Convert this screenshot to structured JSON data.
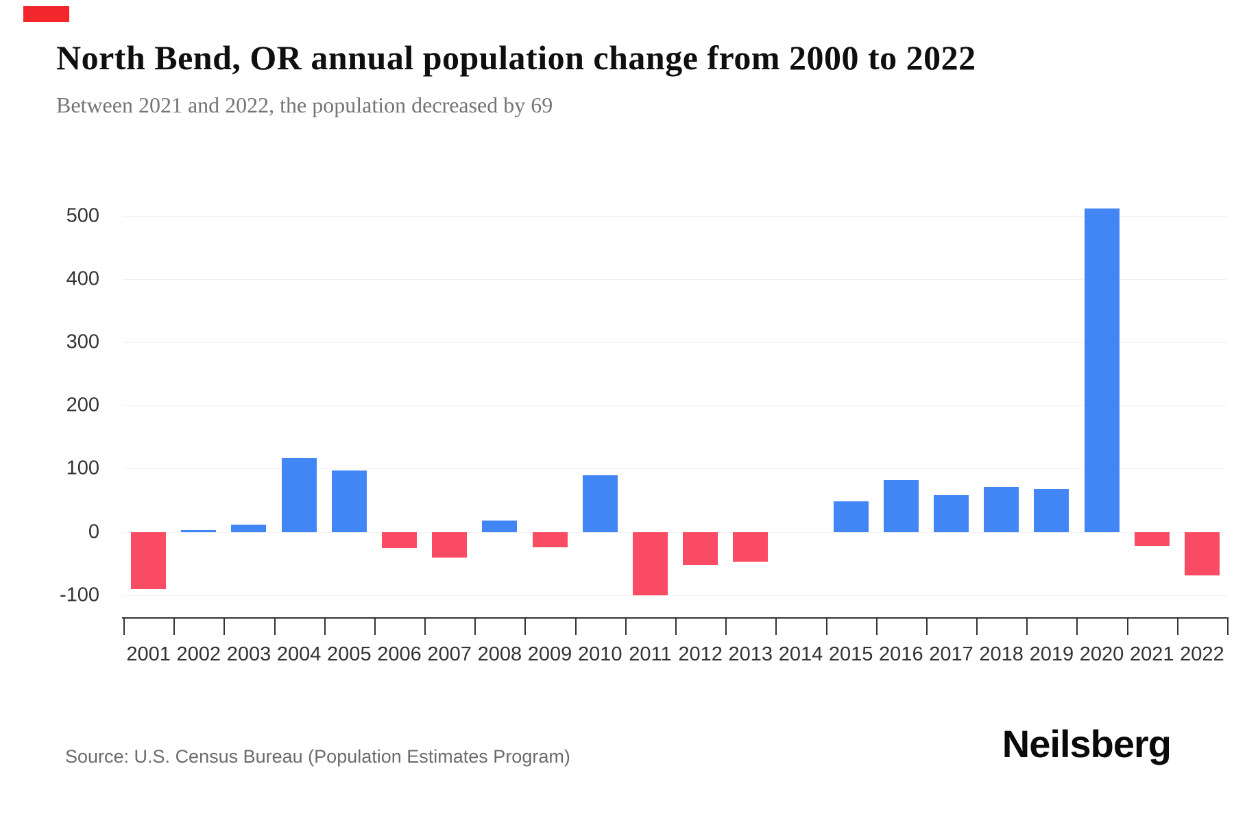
{
  "header": {
    "title": "North Bend, OR annual population change from 2000 to 2022",
    "subtitle": "Between 2021 and 2022, the population decreased by 69"
  },
  "footer": {
    "source": "Source: U.S. Census Bureau (Population Estimates Program)",
    "brand": "Neilsberg"
  },
  "colors": {
    "positive_bar": "#4285F4",
    "negative_bar": "#FA4B64",
    "gridline": "#F2F2F2",
    "axis": "#333333",
    "red_marker": "#F2262B",
    "title_text": "#0F0F0F",
    "subtitle_text": "#757575",
    "source_text": "#6B6B6B"
  },
  "chart_data": {
    "type": "bar",
    "title": "North Bend, OR annual population change from 2000 to 2022",
    "subtitle": "Between 2021 and 2022, the population decreased by 69",
    "xlabel": "",
    "ylabel": "",
    "categories": [
      "2001",
      "2002",
      "2003",
      "2004",
      "2005",
      "2006",
      "2007",
      "2008",
      "2009",
      "2010",
      "2011",
      "2012",
      "2013",
      "2014",
      "2015",
      "2016",
      "2017",
      "2018",
      "2019",
      "2020",
      "2021",
      "2022"
    ],
    "values": [
      -90,
      3,
      11,
      117,
      97,
      -25,
      -41,
      18,
      -24,
      90,
      -100,
      -53,
      -47,
      0,
      48,
      82,
      58,
      71,
      68,
      512,
      -22,
      -69
    ],
    "ylim": [
      -135,
      565
    ],
    "yticks": [
      -100,
      0,
      100,
      200,
      300,
      400,
      500
    ],
    "ytick_labels": [
      "-100",
      "0",
      "100",
      "200",
      "300",
      "400",
      "500"
    ],
    "grid": true,
    "legend": "none",
    "positive_color": "#4285F4",
    "negative_color": "#FA4B64"
  }
}
